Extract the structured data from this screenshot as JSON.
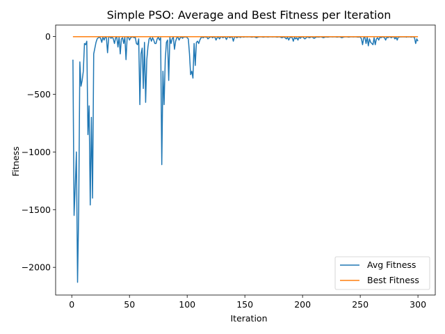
{
  "chart_data": {
    "type": "line",
    "title": "Simple PSO: Average and Best Fitness per Iteration",
    "xlabel": "Iteration",
    "ylabel": "Fitness",
    "xlim": [
      -14,
      315
    ],
    "ylim": [
      -2240,
      100
    ],
    "xticks": [
      0,
      50,
      100,
      150,
      200,
      250,
      300
    ],
    "yticks": [
      0,
      -500,
      -1000,
      -1500,
      -2000
    ],
    "ytick_labels": [
      "0",
      "−500",
      "−1000",
      "−1500",
      "−2000"
    ],
    "grid": false,
    "legend_position": "lower right",
    "series": [
      {
        "name": "Avg Fitness",
        "color": "#1f77b4",
        "points": [
          [
            1,
            -200
          ],
          [
            2,
            -1550
          ],
          [
            3,
            -1300
          ],
          [
            4,
            -1000
          ],
          [
            5,
            -2130
          ],
          [
            6,
            -1500
          ],
          [
            7,
            -220
          ],
          [
            8,
            -430
          ],
          [
            9,
            -380
          ],
          [
            10,
            -300
          ],
          [
            11,
            -60
          ],
          [
            12,
            -70
          ],
          [
            13,
            -40
          ],
          [
            14,
            -850
          ],
          [
            15,
            -600
          ],
          [
            16,
            -1460
          ],
          [
            17,
            -700
          ],
          [
            18,
            -1400
          ],
          [
            19,
            -150
          ],
          [
            20,
            -100
          ],
          [
            21,
            -50
          ],
          [
            22,
            -20
          ],
          [
            23,
            -10
          ],
          [
            24,
            -5
          ],
          [
            25,
            -15
          ],
          [
            26,
            -50
          ],
          [
            27,
            -4
          ],
          [
            28,
            -30
          ],
          [
            29,
            -3
          ],
          [
            30,
            -10
          ],
          [
            31,
            -140
          ],
          [
            32,
            -5
          ],
          [
            33,
            -2
          ],
          [
            34,
            -15
          ],
          [
            35,
            -3
          ],
          [
            36,
            -20
          ],
          [
            37,
            -60
          ],
          [
            38,
            -10
          ],
          [
            39,
            -5
          ],
          [
            40,
            -90
          ],
          [
            41,
            -3
          ],
          [
            42,
            -150
          ],
          [
            43,
            -20
          ],
          [
            44,
            -10
          ],
          [
            45,
            -60
          ],
          [
            46,
            -5
          ],
          [
            47,
            -200
          ],
          [
            48,
            -5
          ],
          [
            49,
            -2
          ],
          [
            50,
            -30
          ],
          [
            51,
            -10
          ],
          [
            52,
            -5
          ],
          [
            53,
            -2
          ],
          [
            54,
            -10
          ],
          [
            55,
            -5
          ],
          [
            56,
            -60
          ],
          [
            57,
            -70
          ],
          [
            58,
            -20
          ],
          [
            59,
            -590
          ],
          [
            60,
            -150
          ],
          [
            61,
            -100
          ],
          [
            62,
            -450
          ],
          [
            63,
            -50
          ],
          [
            64,
            -570
          ],
          [
            65,
            -200
          ],
          [
            66,
            -90
          ],
          [
            67,
            -20
          ],
          [
            68,
            -10
          ],
          [
            69,
            -40
          ],
          [
            70,
            -10
          ],
          [
            71,
            -30
          ],
          [
            72,
            -60
          ],
          [
            73,
            -60
          ],
          [
            74,
            -20
          ],
          [
            75,
            -5
          ],
          [
            76,
            -30
          ],
          [
            77,
            -10
          ],
          [
            78,
            -1110
          ],
          [
            79,
            -300
          ],
          [
            80,
            -590
          ],
          [
            81,
            -200
          ],
          [
            82,
            -50
          ],
          [
            83,
            -30
          ],
          [
            84,
            -380
          ],
          [
            85,
            -5
          ],
          [
            86,
            -60
          ],
          [
            87,
            -20
          ],
          [
            88,
            -3
          ],
          [
            89,
            -110
          ],
          [
            90,
            -40
          ],
          [
            91,
            -10
          ],
          [
            92,
            -5
          ],
          [
            93,
            -30
          ],
          [
            94,
            -10
          ],
          [
            95,
            -3
          ],
          [
            96,
            -15
          ],
          [
            97,
            -2
          ],
          [
            98,
            -5
          ],
          [
            99,
            -1
          ],
          [
            100,
            -10
          ],
          [
            101,
            -20
          ],
          [
            102,
            -150
          ],
          [
            103,
            -330
          ],
          [
            104,
            -300
          ],
          [
            105,
            -360
          ],
          [
            106,
            -60
          ],
          [
            107,
            -250
          ],
          [
            108,
            -50
          ],
          [
            109,
            -40
          ],
          [
            110,
            -60
          ],
          [
            111,
            -30
          ],
          [
            112,
            -10
          ],
          [
            113,
            -5
          ],
          [
            114,
            -10
          ],
          [
            115,
            -2
          ],
          [
            116,
            -5
          ],
          [
            117,
            -3
          ],
          [
            118,
            -20
          ],
          [
            119,
            -10
          ],
          [
            120,
            -5
          ],
          [
            121,
            -2
          ],
          [
            122,
            -10
          ],
          [
            123,
            -3
          ],
          [
            124,
            -5
          ],
          [
            125,
            -30
          ],
          [
            126,
            -10
          ],
          [
            127,
            -2
          ],
          [
            128,
            -20
          ],
          [
            129,
            -5
          ],
          [
            130,
            -2
          ],
          [
            131,
            -10
          ],
          [
            132,
            -3
          ],
          [
            133,
            -5
          ],
          [
            134,
            -25
          ],
          [
            135,
            -5
          ],
          [
            136,
            -2
          ],
          [
            137,
            -10
          ],
          [
            138,
            -5
          ],
          [
            139,
            -3
          ],
          [
            140,
            -40
          ],
          [
            141,
            -5
          ],
          [
            142,
            -2
          ],
          [
            143,
            -10
          ],
          [
            144,
            -5
          ],
          [
            145,
            -2
          ],
          [
            146,
            -8
          ],
          [
            147,
            -3
          ],
          [
            148,
            -2
          ],
          [
            149,
            -5
          ],
          [
            150,
            -2
          ],
          [
            152,
            -3
          ],
          [
            154,
            -2
          ],
          [
            156,
            -5
          ],
          [
            158,
            -2
          ],
          [
            160,
            -10
          ],
          [
            162,
            -3
          ],
          [
            164,
            -2
          ],
          [
            166,
            -5
          ],
          [
            168,
            -2
          ],
          [
            170,
            -4
          ],
          [
            172,
            -2
          ],
          [
            174,
            -3
          ],
          [
            176,
            -2
          ],
          [
            178,
            -5
          ],
          [
            180,
            -2
          ],
          [
            182,
            -10
          ],
          [
            184,
            -3
          ],
          [
            186,
            -20
          ],
          [
            187,
            -5
          ],
          [
            188,
            -30
          ],
          [
            189,
            -10
          ],
          [
            190,
            -5
          ],
          [
            191,
            -10
          ],
          [
            192,
            -40
          ],
          [
            193,
            -5
          ],
          [
            194,
            -20
          ],
          [
            195,
            -10
          ],
          [
            196,
            -30
          ],
          [
            197,
            -3
          ],
          [
            198,
            -15
          ],
          [
            199,
            -5
          ],
          [
            200,
            -2
          ],
          [
            202,
            -20
          ],
          [
            204,
            -3
          ],
          [
            206,
            -10
          ],
          [
            208,
            -2
          ],
          [
            210,
            -15
          ],
          [
            212,
            -3
          ],
          [
            214,
            -5
          ],
          [
            216,
            -2
          ],
          [
            218,
            -10
          ],
          [
            220,
            -3
          ],
          [
            222,
            -5
          ],
          [
            224,
            -2
          ],
          [
            226,
            -3
          ],
          [
            228,
            -2
          ],
          [
            230,
            -5
          ],
          [
            232,
            -2
          ],
          [
            234,
            -10
          ],
          [
            236,
            -3
          ],
          [
            238,
            -2
          ],
          [
            240,
            -5
          ],
          [
            242,
            -2
          ],
          [
            244,
            -3
          ],
          [
            246,
            -2
          ],
          [
            248,
            -5
          ],
          [
            250,
            -3
          ],
          [
            251,
            -20
          ],
          [
            252,
            -70
          ],
          [
            253,
            -10
          ],
          [
            254,
            -5
          ],
          [
            255,
            -60
          ],
          [
            256,
            -5
          ],
          [
            257,
            -80
          ],
          [
            258,
            -20
          ],
          [
            259,
            -50
          ],
          [
            260,
            -60
          ],
          [
            261,
            -70
          ],
          [
            262,
            -10
          ],
          [
            263,
            -70
          ],
          [
            264,
            -20
          ],
          [
            265,
            -10
          ],
          [
            266,
            -30
          ],
          [
            267,
            -5
          ],
          [
            268,
            -10
          ],
          [
            269,
            -3
          ],
          [
            270,
            -5
          ],
          [
            271,
            -10
          ],
          [
            272,
            -30
          ],
          [
            273,
            -5
          ],
          [
            274,
            -10
          ],
          [
            275,
            -2
          ],
          [
            276,
            -5
          ],
          [
            277,
            -10
          ],
          [
            278,
            -3
          ],
          [
            279,
            -2
          ],
          [
            280,
            -20
          ],
          [
            281,
            -5
          ],
          [
            282,
            -30
          ],
          [
            283,
            -3
          ],
          [
            284,
            -5
          ],
          [
            285,
            -2
          ],
          [
            286,
            -3
          ],
          [
            287,
            -2
          ],
          [
            288,
            -3
          ],
          [
            289,
            -2
          ],
          [
            290,
            -5
          ],
          [
            291,
            -2
          ],
          [
            292,
            -3
          ],
          [
            293,
            -2
          ],
          [
            294,
            -5
          ],
          [
            295,
            -3
          ],
          [
            296,
            -2
          ],
          [
            297,
            -10
          ],
          [
            298,
            -60
          ],
          [
            299,
            -20
          ],
          [
            300,
            -40
          ]
        ]
      },
      {
        "name": "Best Fitness",
        "color": "#ff7f0e",
        "points": [
          [
            1,
            -1
          ],
          [
            300,
            -1
          ]
        ]
      }
    ]
  }
}
